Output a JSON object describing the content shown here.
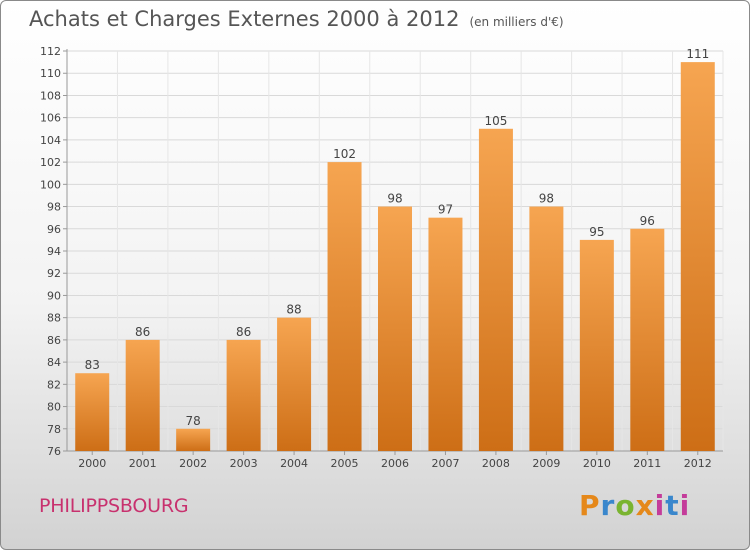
{
  "header": {
    "title": "Achats et Charges Externes 2000 à 2012",
    "subtitle": "(en milliers d'€)"
  },
  "footer": {
    "commune": "PHILIPPSBOURG",
    "brand_logo_text": "Proxiti"
  },
  "colors": {
    "bar_top": "#f6a551",
    "bar_bottom": "#cd6e16",
    "commune_label": "#c8316e",
    "text": "#444444",
    "grid": "#d9d9d9"
  },
  "chart_data": {
    "type": "bar",
    "title": "Achats et Charges Externes 2000 à 2012",
    "subtitle": "(en milliers d'€)",
    "xlabel": "",
    "ylabel": "",
    "categories": [
      "2000",
      "2001",
      "2002",
      "2003",
      "2004",
      "2005",
      "2006",
      "2007",
      "2008",
      "2009",
      "2010",
      "2011",
      "2012"
    ],
    "values": [
      83,
      86,
      78,
      86,
      88,
      102,
      98,
      97,
      105,
      98,
      95,
      96,
      111
    ],
    "data_labels": [
      "83",
      "86",
      "78",
      "86",
      "88",
      "102",
      "98",
      "97",
      "105",
      "98",
      "95",
      "96",
      "111"
    ],
    "ylim": [
      76,
      112
    ],
    "yticks": [
      76,
      78,
      80,
      82,
      84,
      86,
      88,
      90,
      92,
      94,
      96,
      98,
      100,
      102,
      104,
      106,
      108,
      110,
      112
    ],
    "grid": true,
    "legend": "none"
  }
}
